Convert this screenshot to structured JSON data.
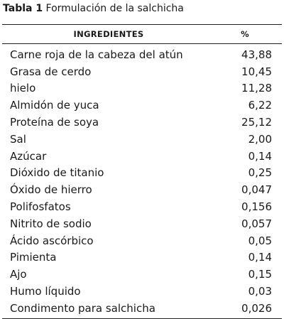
{
  "caption": {
    "label": "Tabla 1",
    "text": "Formulación de la salchicha"
  },
  "table": {
    "headers": {
      "ingredient": "INGREDIENTES",
      "percent": "%"
    },
    "rows": [
      {
        "ingredient": "Carne roja de la cabeza del atún",
        "percent": "43,88"
      },
      {
        "ingredient": "Grasa de cerdo",
        "percent": "10,45"
      },
      {
        "ingredient": "hielo",
        "percent": "11,28"
      },
      {
        "ingredient": "Almidón de yuca",
        "percent": "6,22"
      },
      {
        "ingredient": "Proteína de soya",
        "percent": "25,12"
      },
      {
        "ingredient": "Sal",
        "percent": "2,00"
      },
      {
        "ingredient": "Azúcar",
        "percent": "0,14"
      },
      {
        "ingredient": "Dióxido de titanio",
        "percent": "0,25"
      },
      {
        "ingredient": "Óxido de hierro",
        "percent": "0,047"
      },
      {
        "ingredient": "Polifosfatos",
        "percent": "0,156"
      },
      {
        "ingredient": "Nitrito de sodio",
        "percent": "0,057"
      },
      {
        "ingredient": "Ácido ascórbico",
        "percent": "0,05"
      },
      {
        "ingredient": "Pimienta",
        "percent": "0,14"
      },
      {
        "ingredient": "Ajo",
        "percent": "0,15"
      },
      {
        "ingredient": "Humo líquido",
        "percent": "0,03"
      },
      {
        "ingredient": "Condimento para salchicha",
        "percent": "0,026"
      }
    ]
  }
}
